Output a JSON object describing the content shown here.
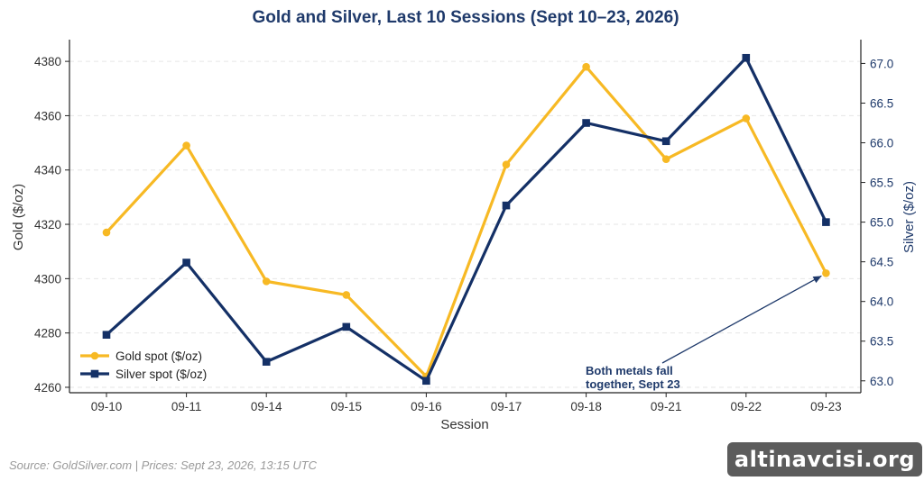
{
  "chart_data": {
    "type": "line",
    "title": "Gold and Silver, Last 10 Sessions (Sept 10–23, 2026)",
    "xlabel": "Session",
    "ylabel_left": "Gold ($/oz)",
    "ylabel_right": "Silver ($/oz)",
    "categories": [
      "09-10",
      "09-11",
      "09-14",
      "09-15",
      "09-16",
      "09-17",
      "09-18",
      "09-21",
      "09-22",
      "09-23"
    ],
    "series": [
      {
        "name": "Gold spot ($/oz)",
        "axis": "left",
        "color": "#f7b924",
        "marker": "circle",
        "values": [
          4317,
          4349,
          4299,
          4294,
          4264,
          4342,
          4378,
          4344,
          4359,
          4302
        ]
      },
      {
        "name": "Silver spot ($/oz)",
        "axis": "right",
        "color": "#143066",
        "marker": "square",
        "values": [
          63.58,
          64.49,
          63.24,
          63.68,
          63.0,
          65.21,
          66.25,
          66.02,
          67.07,
          65.0
        ]
      }
    ],
    "ylim_left": [
      4258,
      4388
    ],
    "yticks_left": [
      4260,
      4280,
      4300,
      4320,
      4340,
      4360,
      4380
    ],
    "ylim_right": [
      62.85,
      67.3
    ],
    "yticks_right": [
      "63.0",
      "63.5",
      "64.0",
      "64.5",
      "65.0",
      "65.5",
      "66.0",
      "66.5",
      "67.0"
    ],
    "grid": "horizontal dashed",
    "legend_position": "lower-left",
    "annotation": {
      "text_line1": "Both metals fall",
      "text_line2": "together, Sept 23",
      "target_category": "09-23",
      "target_series": "Gold spot ($/oz)"
    }
  },
  "footer": {
    "source": "Source: GoldSilver.com | Prices: Sept 23, 2026, 13:15 UTC"
  },
  "watermark": {
    "text": "altinavcisi.org"
  }
}
